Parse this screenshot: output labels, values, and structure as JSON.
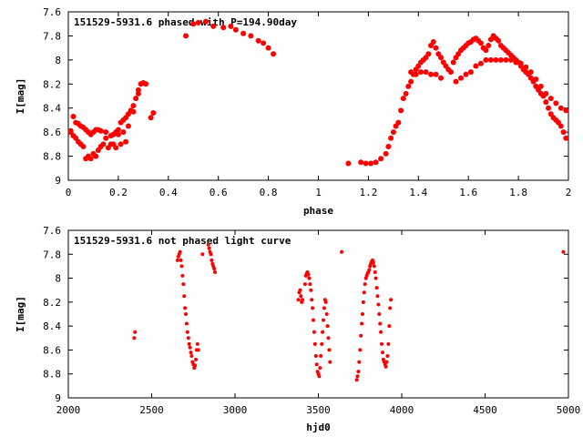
{
  "chart_data": [
    {
      "type": "scatter",
      "title": "151529-5931.6 phased with P=194.90day",
      "xlabel": "phase",
      "ylabel": "I[mag]",
      "xlim": [
        0,
        2
      ],
      "ylim": [
        7.6,
        9
      ],
      "y_inverted": true,
      "x_ticks": [
        "0",
        "0.2",
        "0.4",
        "0.6",
        "0.8",
        "1",
        "1.2",
        "1.4",
        "1.6",
        "1.8",
        "2"
      ],
      "y_ticks": [
        "7.6",
        "7.8",
        "8",
        "8.2",
        "8.4",
        "8.6",
        "8.8",
        "9"
      ],
      "grid": false,
      "marker_color": "#ff0000",
      "marker": "filled-circle-large",
      "series": [
        {
          "x": [
            0.01,
            0.02,
            0.03,
            0.04,
            0.05,
            0.06,
            0.07,
            0.08,
            0.09,
            0.1,
            0.11,
            0.12,
            0.13,
            0.15,
            0.17,
            0.18,
            0.19,
            0.2,
            0.21,
            0.22,
            0.23,
            0.24,
            0.25,
            0.26,
            0.27,
            0.28,
            0.29,
            0.3,
            0.31,
            0.33,
            0.34,
            0.01,
            0.02,
            0.04,
            0.06,
            0.08,
            0.1,
            0.12,
            0.14,
            0.16,
            0.18,
            0.2,
            0.22,
            0.24,
            0.26,
            0.28,
            0.03,
            0.05,
            0.07,
            0.09,
            0.11,
            0.13,
            0.15,
            0.17,
            0.19,
            0.21,
            0.23,
            0.47,
            0.5,
            0.52,
            0.55,
            0.58,
            0.62,
            0.65,
            0.67,
            0.7,
            0.73,
            0.76,
            0.78,
            0.8,
            0.82,
            1.12,
            1.17,
            1.19,
            1.21,
            1.23,
            1.25,
            1.27,
            1.28,
            1.29,
            1.3,
            1.31,
            1.32,
            1.33,
            1.34,
            1.35,
            1.36,
            1.37,
            1.38,
            1.39,
            1.4,
            1.41,
            1.42,
            1.43,
            1.44,
            1.45,
            1.46,
            1.47,
            1.48,
            1.49,
            1.5,
            1.51,
            1.52,
            1.53,
            1.54,
            1.55,
            1.56,
            1.57,
            1.58,
            1.59,
            1.6,
            1.61,
            1.62,
            1.63,
            1.64,
            1.65,
            1.66,
            1.67,
            1.68,
            1.69,
            1.7,
            1.71,
            1.72,
            1.73,
            1.74,
            1.75,
            1.76,
            1.77,
            1.78,
            1.79,
            1.8,
            1.81,
            1.82,
            1.83,
            1.84,
            1.85,
            1.86,
            1.87,
            1.88,
            1.89,
            1.9,
            1.91,
            1.92,
            1.93,
            1.94,
            1.95,
            1.96,
            1.97,
            1.98,
            1.99,
            1.37,
            1.39,
            1.41,
            1.43,
            1.45,
            1.47,
            1.49,
            1.55,
            1.57,
            1.59,
            1.61,
            1.63,
            1.65,
            1.67,
            1.69,
            1.71,
            1.73,
            1.75,
            1.77,
            1.79,
            1.81,
            1.83,
            1.85,
            1.87,
            1.89,
            1.91,
            1.93,
            1.95,
            1.97,
            1.99
          ],
          "y": [
            8.59,
            8.47,
            8.52,
            8.53,
            8.55,
            8.56,
            8.58,
            8.6,
            8.62,
            8.6,
            8.58,
            8.58,
            8.59,
            8.6,
            8.63,
            8.62,
            8.6,
            8.58,
            8.52,
            8.5,
            8.48,
            8.45,
            8.42,
            8.38,
            8.32,
            8.25,
            8.2,
            8.19,
            8.2,
            8.48,
            8.44,
            8.6,
            8.63,
            8.68,
            8.72,
            8.8,
            8.78,
            8.75,
            8.7,
            8.73,
            8.7,
            8.62,
            8.6,
            8.55,
            8.43,
            8.28,
            8.65,
            8.7,
            8.82,
            8.82,
            8.8,
            8.72,
            8.65,
            8.7,
            8.73,
            8.7,
            8.68,
            7.8,
            7.7,
            7.69,
            7.68,
            7.72,
            7.73,
            7.72,
            7.75,
            7.78,
            7.8,
            7.84,
            7.86,
            7.9,
            7.95,
            8.86,
            8.85,
            8.86,
            8.86,
            8.85,
            8.82,
            8.78,
            8.72,
            8.65,
            8.6,
            8.55,
            8.52,
            8.42,
            8.32,
            8.28,
            8.22,
            8.18,
            8.12,
            8.08,
            8.05,
            8.02,
            8.0,
            7.98,
            7.95,
            7.88,
            7.85,
            7.9,
            7.95,
            7.98,
            8.02,
            8.05,
            8.08,
            8.1,
            8.02,
            7.98,
            7.95,
            7.92,
            7.9,
            7.88,
            7.86,
            7.85,
            7.83,
            7.82,
            7.84,
            7.86,
            7.9,
            7.92,
            7.88,
            7.83,
            7.8,
            7.82,
            7.84,
            7.88,
            7.9,
            7.92,
            7.94,
            7.96,
            7.98,
            8.0,
            8.02,
            8.05,
            8.08,
            8.1,
            8.12,
            8.15,
            8.18,
            8.22,
            8.25,
            8.28,
            8.3,
            8.35,
            8.4,
            8.45,
            8.48,
            8.5,
            8.52,
            8.55,
            8.6,
            8.65,
            8.1,
            8.12,
            8.1,
            8.1,
            8.12,
            8.12,
            8.15,
            8.18,
            8.15,
            8.12,
            8.1,
            8.05,
            8.03,
            8.0,
            8.0,
            8.0,
            8.0,
            8.0,
            8.0,
            8.02,
            8.03,
            8.06,
            8.1,
            8.16,
            8.22,
            8.28,
            8.32,
            8.36,
            8.4,
            8.42
          ]
        }
      ]
    },
    {
      "type": "scatter",
      "title": "151529-5931.6 not phased light curve",
      "xlabel": "hjd0",
      "ylabel": "I[mag]",
      "xlim": [
        2000,
        5000
      ],
      "ylim": [
        7.6,
        9
      ],
      "y_inverted": true,
      "x_ticks": [
        "2000",
        "2500",
        "3000",
        "3500",
        "4000",
        "4500",
        "5000"
      ],
      "y_ticks": [
        "7.6",
        "7.8",
        "8",
        "8.2",
        "8.4",
        "8.6",
        "8.8",
        "9"
      ],
      "grid": false,
      "marker_color": "#ff0000",
      "marker": "filled-circle-small",
      "series": [
        {
          "x": [
            2395,
            2400,
            2655,
            2660,
            2665,
            2670,
            2675,
            2680,
            2685,
            2690,
            2695,
            2700,
            2705,
            2710,
            2715,
            2720,
            2725,
            2730,
            2735,
            2740,
            2745,
            2750,
            2755,
            2760,
            2765,
            2770,
            2775,
            2780,
            2805,
            2840,
            2845,
            2850,
            2855,
            2860,
            2865,
            2870,
            2875,
            2880,
            3380,
            3385,
            3390,
            3395,
            3400,
            3405,
            3420,
            3425,
            3430,
            3435,
            3440,
            3445,
            3450,
            3455,
            3460,
            3465,
            3470,
            3475,
            3480,
            3485,
            3490,
            3495,
            3500,
            3505,
            3510,
            3515,
            3520,
            3525,
            3530,
            3535,
            3540,
            3545,
            3550,
            3555,
            3560,
            3565,
            3570,
            3640,
            3730,
            3735,
            3740,
            3745,
            3750,
            3755,
            3760,
            3765,
            3770,
            3775,
            3780,
            3785,
            3790,
            3795,
            3800,
            3805,
            3810,
            3815,
            3820,
            3825,
            3830,
            3835,
            3840,
            3845,
            3850,
            3855,
            3860,
            3865,
            3870,
            3875,
            3880,
            3885,
            3890,
            3895,
            3900,
            3905,
            3910,
            3915,
            3920,
            3925,
            3930,
            3935,
            4970
          ],
          "y": [
            8.5,
            8.45,
            7.85,
            7.82,
            7.8,
            7.78,
            7.85,
            7.9,
            7.98,
            8.05,
            8.15,
            8.25,
            8.3,
            8.38,
            8.45,
            8.5,
            8.55,
            8.58,
            8.62,
            8.65,
            8.7,
            8.72,
            8.75,
            8.73,
            8.68,
            8.6,
            8.55,
            8.6,
            7.8,
            7.72,
            7.75,
            7.78,
            7.8,
            7.85,
            7.88,
            7.9,
            7.92,
            7.95,
            8.18,
            8.12,
            8.1,
            8.15,
            8.2,
            8.18,
            8.05,
            7.98,
            7.96,
            7.95,
            7.97,
            8.0,
            8.05,
            8.1,
            8.18,
            8.25,
            8.35,
            8.45,
            8.55,
            8.65,
            8.72,
            8.78,
            8.8,
            8.82,
            8.75,
            8.65,
            8.55,
            8.45,
            8.35,
            8.25,
            8.18,
            8.2,
            8.3,
            8.4,
            8.5,
            8.6,
            8.7,
            7.78,
            8.85,
            8.82,
            8.78,
            8.7,
            8.6,
            8.48,
            8.38,
            8.3,
            8.2,
            8.12,
            8.05,
            8.0,
            7.98,
            7.96,
            7.95,
            7.93,
            7.9,
            7.88,
            7.86,
            7.85,
            7.87,
            7.9,
            7.95,
            8.0,
            8.08,
            8.15,
            8.22,
            8.3,
            8.38,
            8.45,
            8.55,
            8.62,
            8.68,
            8.7,
            8.72,
            8.74,
            8.7,
            8.65,
            8.55,
            8.4,
            8.25,
            8.18,
            7.78
          ]
        }
      ]
    }
  ]
}
